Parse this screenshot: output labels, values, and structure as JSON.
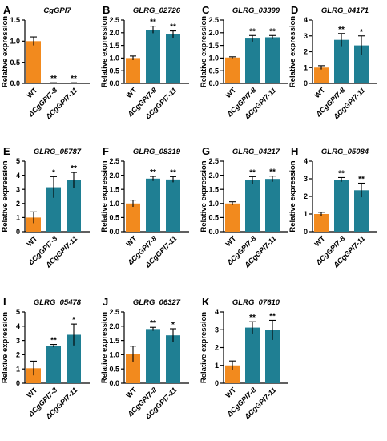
{
  "colors": {
    "wt": "#f28a1e",
    "mutant": "#1f7f93",
    "axis": "#000000"
  },
  "chart_data": [
    {
      "letter": "A",
      "title": "CgGPI7",
      "type": "bar",
      "ylabel": "Relative expression",
      "categories": [
        "WT",
        "ΔCgGPI7-8",
        "ΔCgGPI7-11"
      ],
      "values": [
        1.0,
        0.01,
        0.01
      ],
      "errors": [
        0.1,
        0.005,
        0.005
      ],
      "sig": [
        "",
        "**",
        "**"
      ],
      "ylim": [
        0,
        1.5
      ],
      "ticks": [
        "0.0",
        "0.5",
        "1.0",
        "1.5"
      ]
    },
    {
      "letter": "B",
      "title": "GLRG_02726",
      "type": "bar",
      "ylabel": "Relative expression",
      "categories": [
        "WT",
        "ΔCgGPI7-8",
        "ΔCgGPI7-11"
      ],
      "values": [
        1.0,
        2.12,
        1.93
      ],
      "errors": [
        0.08,
        0.14,
        0.14
      ],
      "sig": [
        "",
        "**",
        "**"
      ],
      "ylim": [
        0,
        2.5
      ],
      "ticks": [
        "0.0",
        "0.5",
        "1.0",
        "1.5",
        "2.0",
        "2.5"
      ]
    },
    {
      "letter": "C",
      "title": "GLRG_03399",
      "type": "bar",
      "ylabel": "Relative expression",
      "categories": [
        "WT",
        "ΔCgGPI7-8",
        "ΔCgGPI7-11"
      ],
      "values": [
        1.02,
        1.77,
        1.82
      ],
      "errors": [
        0.03,
        0.12,
        0.07
      ],
      "sig": [
        "",
        "**",
        "**"
      ],
      "ylim": [
        0,
        2.5
      ],
      "ticks": [
        "0.0",
        "0.5",
        "1.0",
        "1.5",
        "2.0",
        "2.5"
      ]
    },
    {
      "letter": "D",
      "title": "GLRG_04171",
      "type": "bar",
      "ylabel": "Relative expression",
      "categories": [
        "WT",
        "ΔCgGPI7-8",
        "ΔCgGPI7-11"
      ],
      "values": [
        1.0,
        2.75,
        2.4
      ],
      "errors": [
        0.12,
        0.4,
        0.6
      ],
      "sig": [
        "",
        "**",
        "*"
      ],
      "ylim": [
        0,
        4
      ],
      "ticks": [
        "0",
        "1",
        "2",
        "3",
        "4"
      ]
    },
    {
      "letter": "E",
      "title": "GLRG_05787",
      "type": "bar",
      "ylabel": "Relative expression",
      "categories": [
        "WT",
        "ΔCgGPI7-8",
        "ΔCgGPI7-11"
      ],
      "values": [
        1.0,
        3.15,
        3.65
      ],
      "errors": [
        0.4,
        0.75,
        0.55
      ],
      "sig": [
        "",
        "*",
        "**"
      ],
      "ylim": [
        0,
        5
      ],
      "ticks": [
        "0",
        "1",
        "2",
        "3",
        "4",
        "5"
      ]
    },
    {
      "letter": "F",
      "title": "GLRG_08319",
      "type": "bar",
      "ylabel": "Relative expression",
      "categories": [
        "WT",
        "ΔCgGPI7-8",
        "ΔCgGPI7-11"
      ],
      "values": [
        1.0,
        1.88,
        1.85
      ],
      "errors": [
        0.12,
        0.08,
        0.1
      ],
      "sig": [
        "",
        "**",
        "**"
      ],
      "ylim": [
        0,
        2.5
      ],
      "ticks": [
        "0.0",
        "0.5",
        "1.0",
        "1.5",
        "2.0",
        "2.5"
      ]
    },
    {
      "letter": "G",
      "title": "GLRG_04217",
      "type": "bar",
      "ylabel": "Relative expression",
      "categories": [
        "WT",
        "ΔCgGPI7-8",
        "ΔCgGPI7-11"
      ],
      "values": [
        1.0,
        1.82,
        1.87
      ],
      "errors": [
        0.06,
        0.13,
        0.1
      ],
      "sig": [
        "",
        "**",
        "**"
      ],
      "ylim": [
        0,
        2.5
      ],
      "ticks": [
        "0.0",
        "0.5",
        "1.0",
        "1.5",
        "2.0",
        "2.5"
      ]
    },
    {
      "letter": "H",
      "title": "GLRG_05084",
      "type": "bar",
      "ylabel": "Relative expression",
      "categories": [
        "WT",
        "ΔCgGPI7-8",
        "ΔCgGPI7-11"
      ],
      "values": [
        1.0,
        2.95,
        2.35
      ],
      "errors": [
        0.1,
        0.12,
        0.4
      ],
      "sig": [
        "",
        "**",
        "**"
      ],
      "ylim": [
        0,
        4
      ],
      "ticks": [
        "0",
        "1",
        "2",
        "3",
        "4"
      ]
    },
    {
      "letter": "I",
      "title": "GLRG_05478",
      "type": "bar",
      "ylabel": "Relative expression",
      "categories": [
        "WT",
        "ΔCgGPI7-8",
        "ΔCgGPI7-11"
      ],
      "values": [
        1.05,
        2.62,
        3.4
      ],
      "errors": [
        0.5,
        0.1,
        0.75
      ],
      "sig": [
        "",
        "**",
        "*"
      ],
      "ylim": [
        0,
        5
      ],
      "ticks": [
        "0",
        "1",
        "2",
        "3",
        "4",
        "5"
      ]
    },
    {
      "letter": "J",
      "title": "GLRG_06327",
      "type": "bar",
      "ylabel": "Relative expression",
      "categories": [
        "WT",
        "ΔCgGPI7-8",
        "ΔCgGPI7-11"
      ],
      "values": [
        1.03,
        1.9,
        1.68
      ],
      "errors": [
        0.27,
        0.06,
        0.23
      ],
      "sig": [
        "",
        "**",
        "*"
      ],
      "ylim": [
        0,
        2.5
      ],
      "ticks": [
        "0.0",
        "0.5",
        "1.0",
        "1.5",
        "2.0",
        "2.5"
      ]
    },
    {
      "letter": "K",
      "title": "GLRG_07610",
      "type": "bar",
      "ylabel": "Relative expression",
      "categories": [
        "WT",
        "ΔCgGPI7-8",
        "ΔCgGPI7-11"
      ],
      "values": [
        1.0,
        3.12,
        2.98
      ],
      "errors": [
        0.25,
        0.33,
        0.55
      ],
      "sig": [
        "",
        "**",
        "**"
      ],
      "ylim": [
        0,
        4
      ],
      "ticks": [
        "0",
        "1",
        "2",
        "3",
        "4"
      ]
    }
  ]
}
